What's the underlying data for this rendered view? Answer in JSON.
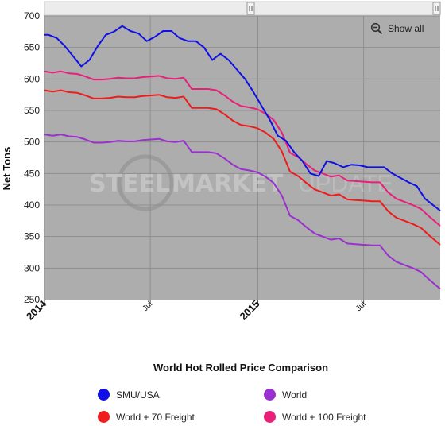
{
  "toolbar": {
    "show_all_label": "Show all",
    "show_all_icon": "zoom-out-icon"
  },
  "watermark": {
    "word1": "STEEL",
    "word2": "MARKET",
    "word3": "UPDATE"
  },
  "chart_data": {
    "type": "line",
    "title": "World Hot Rolled Price Comparison",
    "xlabel": "",
    "ylabel": "Net Tons",
    "ylim": [
      250,
      700
    ],
    "yticks": [
      250,
      300,
      350,
      400,
      450,
      500,
      550,
      600,
      650,
      700
    ],
    "x_range": [
      "2014-01-01",
      "2015-11-09"
    ],
    "xticks": [
      {
        "date": "2014-01-01",
        "label": "2014",
        "bold": true
      },
      {
        "date": "2014-07-01",
        "label": "Jul",
        "bold": false
      },
      {
        "date": "2015-01-01",
        "label": "2015",
        "bold": true
      },
      {
        "date": "2015-07-01",
        "label": "Jul",
        "bold": false
      }
    ],
    "grid": true,
    "legend_position": "bottom",
    "plot_background": "#adadad",
    "series": [
      {
        "name": "SMU/USA",
        "color": "#1010e6",
        "points": [
          [
            "2014-01-01",
            670
          ],
          [
            "2014-01-08",
            670
          ],
          [
            "2014-01-22",
            665
          ],
          [
            "2014-02-05",
            652
          ],
          [
            "2014-02-19",
            636
          ],
          [
            "2014-03-05",
            620
          ],
          [
            "2014-03-19",
            630
          ],
          [
            "2014-04-02",
            652
          ],
          [
            "2014-04-16",
            670
          ],
          [
            "2014-04-30",
            675
          ],
          [
            "2014-05-14",
            684
          ],
          [
            "2014-05-28",
            676
          ],
          [
            "2014-06-11",
            672
          ],
          [
            "2014-06-25",
            660
          ],
          [
            "2014-07-09",
            667
          ],
          [
            "2014-07-23",
            676
          ],
          [
            "2014-08-06",
            676
          ],
          [
            "2014-08-20",
            665
          ],
          [
            "2014-09-03",
            660
          ],
          [
            "2014-09-17",
            660
          ],
          [
            "2014-10-01",
            650
          ],
          [
            "2014-10-15",
            630
          ],
          [
            "2014-10-29",
            640
          ],
          [
            "2014-11-12",
            630
          ],
          [
            "2014-11-26",
            615
          ],
          [
            "2014-12-10",
            600
          ],
          [
            "2014-12-24",
            580
          ],
          [
            "2015-01-07",
            558
          ],
          [
            "2015-01-21",
            536
          ],
          [
            "2015-02-04",
            510
          ],
          [
            "2015-02-18",
            502
          ],
          [
            "2015-03-04",
            484
          ],
          [
            "2015-03-18",
            470
          ],
          [
            "2015-04-01",
            450
          ],
          [
            "2015-04-15",
            446
          ],
          [
            "2015-04-29",
            470
          ],
          [
            "2015-05-13",
            466
          ],
          [
            "2015-05-27",
            460
          ],
          [
            "2015-06-10",
            464
          ],
          [
            "2015-06-24",
            463
          ],
          [
            "2015-07-08",
            460
          ],
          [
            "2015-07-22",
            460
          ],
          [
            "2015-08-05",
            460
          ],
          [
            "2015-08-19",
            450
          ],
          [
            "2015-09-02",
            443
          ],
          [
            "2015-09-16",
            436
          ],
          [
            "2015-09-30",
            430
          ],
          [
            "2015-10-14",
            410
          ],
          [
            "2015-11-09",
            391
          ]
        ]
      },
      {
        "name": "World",
        "color": "#9a30cf",
        "points": [
          [
            "2014-01-01",
            512
          ],
          [
            "2014-01-15",
            510
          ],
          [
            "2014-01-29",
            512
          ],
          [
            "2014-02-12",
            509
          ],
          [
            "2014-02-26",
            508
          ],
          [
            "2014-03-12",
            504
          ],
          [
            "2014-03-26",
            499
          ],
          [
            "2014-04-09",
            499
          ],
          [
            "2014-04-23",
            500
          ],
          [
            "2014-05-07",
            502
          ],
          [
            "2014-05-21",
            501
          ],
          [
            "2014-06-04",
            501
          ],
          [
            "2014-06-18",
            503
          ],
          [
            "2014-07-02",
            504
          ],
          [
            "2014-07-16",
            505
          ],
          [
            "2014-07-30",
            501
          ],
          [
            "2014-08-13",
            500
          ],
          [
            "2014-08-27",
            502
          ],
          [
            "2014-09-10",
            484
          ],
          [
            "2014-09-24",
            484
          ],
          [
            "2014-10-08",
            484
          ],
          [
            "2014-10-22",
            482
          ],
          [
            "2014-11-05",
            474
          ],
          [
            "2014-11-19",
            464
          ],
          [
            "2014-12-03",
            457
          ],
          [
            "2014-12-17",
            455
          ],
          [
            "2014-12-31",
            452
          ],
          [
            "2015-01-14",
            445
          ],
          [
            "2015-01-28",
            435
          ],
          [
            "2015-02-11",
            415
          ],
          [
            "2015-02-25",
            383
          ],
          [
            "2015-03-11",
            376
          ],
          [
            "2015-03-25",
            365
          ],
          [
            "2015-04-08",
            355
          ],
          [
            "2015-04-22",
            350
          ],
          [
            "2015-05-06",
            345
          ],
          [
            "2015-05-20",
            347
          ],
          [
            "2015-06-03",
            339
          ],
          [
            "2015-06-17",
            338
          ],
          [
            "2015-07-01",
            337
          ],
          [
            "2015-07-15",
            336
          ],
          [
            "2015-07-29",
            336
          ],
          [
            "2015-08-12",
            320
          ],
          [
            "2015-08-26",
            310
          ],
          [
            "2015-09-09",
            305
          ],
          [
            "2015-09-23",
            300
          ],
          [
            "2015-10-07",
            294
          ],
          [
            "2015-10-21",
            282
          ],
          [
            "2015-11-09",
            267
          ]
        ]
      },
      {
        "name": "World + 70 Freight",
        "color": "#ee1c1c",
        "points": [
          [
            "2014-01-01",
            582
          ],
          [
            "2014-01-15",
            580
          ],
          [
            "2014-01-29",
            582
          ],
          [
            "2014-02-12",
            579
          ],
          [
            "2014-02-26",
            578
          ],
          [
            "2014-03-12",
            574
          ],
          [
            "2014-03-26",
            569
          ],
          [
            "2014-04-09",
            569
          ],
          [
            "2014-04-23",
            570
          ],
          [
            "2014-05-07",
            572
          ],
          [
            "2014-05-21",
            571
          ],
          [
            "2014-06-04",
            571
          ],
          [
            "2014-06-18",
            573
          ],
          [
            "2014-07-02",
            574
          ],
          [
            "2014-07-16",
            575
          ],
          [
            "2014-07-30",
            571
          ],
          [
            "2014-08-13",
            570
          ],
          [
            "2014-08-27",
            572
          ],
          [
            "2014-09-10",
            554
          ],
          [
            "2014-09-24",
            554
          ],
          [
            "2014-10-08",
            554
          ],
          [
            "2014-10-22",
            552
          ],
          [
            "2014-11-05",
            544
          ],
          [
            "2014-11-19",
            534
          ],
          [
            "2014-12-03",
            527
          ],
          [
            "2014-12-17",
            525
          ],
          [
            "2014-12-31",
            522
          ],
          [
            "2015-01-14",
            515
          ],
          [
            "2015-01-28",
            505
          ],
          [
            "2015-02-11",
            485
          ],
          [
            "2015-02-25",
            453
          ],
          [
            "2015-03-11",
            446
          ],
          [
            "2015-03-25",
            435
          ],
          [
            "2015-04-08",
            425
          ],
          [
            "2015-04-22",
            420
          ],
          [
            "2015-05-06",
            415
          ],
          [
            "2015-05-20",
            417
          ],
          [
            "2015-06-03",
            409
          ],
          [
            "2015-06-17",
            408
          ],
          [
            "2015-07-01",
            407
          ],
          [
            "2015-07-15",
            406
          ],
          [
            "2015-07-29",
            406
          ],
          [
            "2015-08-12",
            390
          ],
          [
            "2015-08-26",
            380
          ],
          [
            "2015-09-09",
            375
          ],
          [
            "2015-09-23",
            370
          ],
          [
            "2015-10-07",
            364
          ],
          [
            "2015-10-21",
            352
          ],
          [
            "2015-11-09",
            337
          ]
        ]
      },
      {
        "name": "World + 100 Freight",
        "color": "#e8207a",
        "points": [
          [
            "2014-01-01",
            612
          ],
          [
            "2014-01-15",
            610
          ],
          [
            "2014-01-29",
            612
          ],
          [
            "2014-02-12",
            609
          ],
          [
            "2014-02-26",
            608
          ],
          [
            "2014-03-12",
            604
          ],
          [
            "2014-03-26",
            599
          ],
          [
            "2014-04-09",
            599
          ],
          [
            "2014-04-23",
            600
          ],
          [
            "2014-05-07",
            602
          ],
          [
            "2014-05-21",
            601
          ],
          [
            "2014-06-04",
            601
          ],
          [
            "2014-06-18",
            603
          ],
          [
            "2014-07-02",
            604
          ],
          [
            "2014-07-16",
            605
          ],
          [
            "2014-07-30",
            601
          ],
          [
            "2014-08-13",
            600
          ],
          [
            "2014-08-27",
            602
          ],
          [
            "2014-09-10",
            584
          ],
          [
            "2014-09-24",
            584
          ],
          [
            "2014-10-08",
            584
          ],
          [
            "2014-10-22",
            582
          ],
          [
            "2014-11-05",
            574
          ],
          [
            "2014-11-19",
            564
          ],
          [
            "2014-12-03",
            557
          ],
          [
            "2014-12-17",
            555
          ],
          [
            "2014-12-31",
            552
          ],
          [
            "2015-01-14",
            545
          ],
          [
            "2015-01-28",
            535
          ],
          [
            "2015-02-11",
            515
          ],
          [
            "2015-02-25",
            483
          ],
          [
            "2015-03-11",
            476
          ],
          [
            "2015-03-25",
            465
          ],
          [
            "2015-04-08",
            455
          ],
          [
            "2015-04-22",
            450
          ],
          [
            "2015-05-06",
            445
          ],
          [
            "2015-05-20",
            447
          ],
          [
            "2015-06-03",
            439
          ],
          [
            "2015-06-17",
            438
          ],
          [
            "2015-07-01",
            437
          ],
          [
            "2015-07-15",
            436
          ],
          [
            "2015-07-29",
            436
          ],
          [
            "2015-08-12",
            420
          ],
          [
            "2015-08-26",
            410
          ],
          [
            "2015-09-09",
            405
          ],
          [
            "2015-09-23",
            400
          ],
          [
            "2015-10-07",
            394
          ],
          [
            "2015-10-21",
            382
          ],
          [
            "2015-11-09",
            367
          ]
        ]
      }
    ]
  },
  "legend": [
    {
      "label": "SMU/USA",
      "color": "#1010e6"
    },
    {
      "label": "World",
      "color": "#9a30cf"
    },
    {
      "label": "World + 70 Freight",
      "color": "#ee1c1c"
    },
    {
      "label": "World + 100 Freight",
      "color": "#e8207a"
    }
  ]
}
